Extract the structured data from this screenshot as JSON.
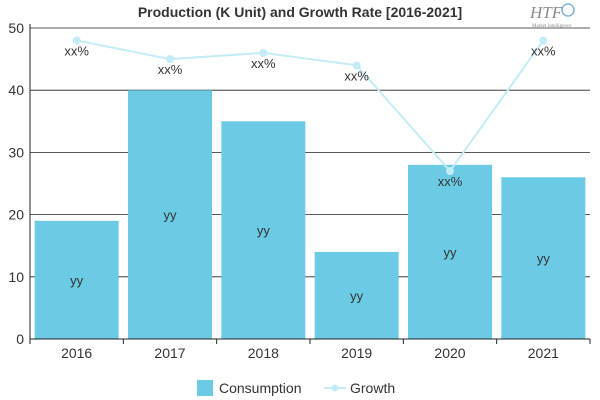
{
  "chart_data": {
    "type": "bar",
    "title": "Production (K Unit) and Growth Rate [2016-2021]",
    "categories": [
      "2016",
      "2017",
      "2018",
      "2019",
      "2020",
      "2021"
    ],
    "series": [
      {
        "name": "Consumption",
        "type": "bar",
        "values": [
          19,
          40,
          35,
          14,
          28,
          26
        ],
        "labels": [
          "yy",
          "yy",
          "yy",
          "yy",
          "yy",
          "yy"
        ],
        "color": "#6bcae4"
      },
      {
        "name": "Growth",
        "type": "line",
        "values": [
          48,
          45,
          46,
          44,
          27,
          48
        ],
        "labels": [
          "xx%",
          "xx%",
          "xx%",
          "xx%",
          "xx%",
          "xx%"
        ],
        "color": "#c4ecf7"
      }
    ],
    "ylim": [
      0,
      50
    ],
    "yticks": [
      "0",
      "10",
      "20",
      "30",
      "40",
      "50"
    ],
    "grid": true,
    "legend": "bottom"
  },
  "logo": {
    "text": "HTF",
    "sub": "Market Intelligence"
  }
}
